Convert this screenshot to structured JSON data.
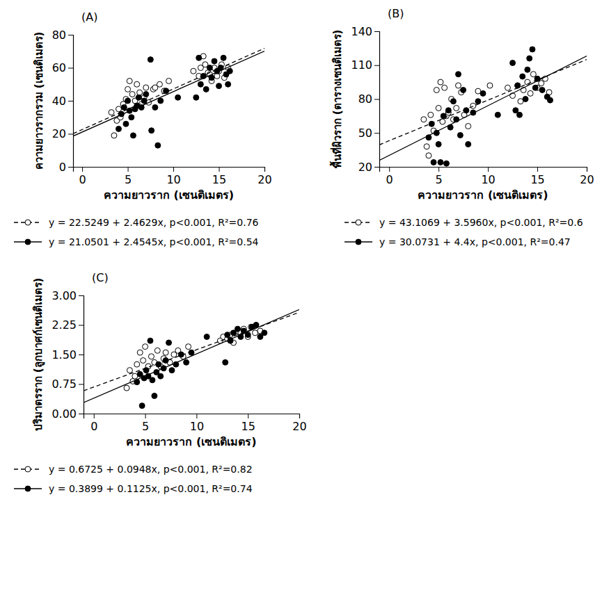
{
  "chart_data": [
    {
      "type": "scatter",
      "title": "(A)",
      "x_label": "ความยาวราก (เซนติเมตร)",
      "y_label": "ความยาวรากรวม (เซนติเมตร)",
      "xlim": [
        -1,
        20
      ],
      "ylim": [
        0,
        80
      ],
      "xticks": [
        0,
        5,
        10,
        15,
        20
      ],
      "yticks": [
        0,
        20,
        40,
        60,
        80
      ],
      "grid": false,
      "legend": "bottom",
      "series": [
        {
          "name": "y = 22.5249 + 2.4629x, p<0.001, R²=0.76",
          "color": "#000000",
          "marker": "open-circle",
          "line_style": "dashed",
          "x": [
            3.2,
            3.5,
            3.8,
            4.0,
            4.2,
            4.5,
            4.8,
            5.0,
            5.2,
            5.5,
            5.8,
            6.0,
            6.3,
            6.5,
            6.8,
            7.0,
            7.3,
            7.8,
            8.0,
            8.5,
            9.0,
            9.5,
            12.2,
            12.8,
            13.0,
            13.3,
            13.5,
            13.8,
            14.0,
            14.2,
            14.5,
            14.8,
            15.0,
            15.3,
            15.6,
            16.0
          ],
          "values": [
            33,
            19,
            28,
            35,
            30,
            38,
            41,
            47,
            52,
            44,
            40,
            50,
            45,
            38,
            42,
            48,
            39,
            47,
            48,
            50,
            46,
            52,
            58,
            55,
            60,
            67,
            62,
            57,
            56,
            52,
            60,
            55,
            58,
            62,
            54,
            60
          ],
          "fit": {
            "x": [
              -1,
              20
            ],
            "values": [
              20.1,
              71.8
            ]
          }
        },
        {
          "name": "y = 21.0501 + 2.4545x, p<0.001, R²=0.54",
          "color": "#000000",
          "marker": "filled-circle",
          "line_style": "solid",
          "x": [
            4.0,
            4.3,
            4.6,
            4.8,
            5.0,
            5.2,
            5.4,
            5.6,
            5.8,
            6.0,
            6.2,
            6.5,
            6.8,
            7.0,
            7.5,
            7.6,
            8.0,
            8.3,
            8.6,
            9.2,
            10.5,
            12.5,
            12.8,
            13.0,
            13.3,
            13.6,
            14.0,
            14.2,
            14.5,
            14.8,
            15.0,
            15.2,
            15.5,
            15.8,
            16.0,
            16.2
          ],
          "values": [
            23,
            32,
            36,
            26,
            40,
            34,
            30,
            19,
            35,
            37,
            42,
            36,
            40,
            44,
            65,
            22,
            36,
            13,
            40,
            46,
            42,
            42,
            66,
            50,
            55,
            47,
            60,
            54,
            64,
            58,
            49,
            60,
            66,
            56,
            50,
            58
          ],
          "fit": {
            "x": [
              -1,
              20
            ],
            "values": [
              18.6,
              70.1
            ]
          }
        }
      ]
    },
    {
      "type": "scatter",
      "title": "(B)",
      "x_label": "ความยาวราก (เซนติเมตร)",
      "y_label": "พื้นที่ผิวราก (ตารางเซนติเมตร)",
      "xlim": [
        -1,
        20
      ],
      "ylim": [
        20,
        140
      ],
      "xticks": [
        0,
        5,
        10,
        15,
        20
      ],
      "yticks": [
        20,
        50,
        80,
        110,
        140
      ],
      "grid": false,
      "legend": "bottom",
      "series": [
        {
          "name": "y = 43.1069 + 3.5960x, p<0.001, R²=0.6",
          "color": "#000000",
          "marker": "open-circle",
          "line_style": "dashed",
          "x": [
            3.5,
            3.8,
            4.0,
            4.2,
            4.5,
            4.8,
            5.0,
            5.2,
            5.4,
            5.6,
            5.8,
            6.0,
            6.3,
            6.5,
            6.8,
            7.0,
            7.3,
            7.6,
            8.0,
            8.5,
            9.0,
            10.2,
            12.0,
            12.5,
            13.0,
            13.3,
            13.6,
            14.0,
            14.3,
            14.6,
            15.0,
            15.4,
            15.8,
            16.2
          ],
          "values": [
            62,
            38,
            30,
            66,
            52,
            88,
            72,
            95,
            60,
            90,
            65,
            68,
            80,
            62,
            72,
            92,
            86,
            66,
            56,
            74,
            87,
            92,
            90,
            83,
            92,
            78,
            88,
            95,
            85,
            102,
            90,
            94,
            98,
            86
          ],
          "fit": {
            "x": [
              -1,
              20
            ],
            "values": [
              39.5,
              115.0
            ]
          }
        },
        {
          "name": "y = 30.0731 + 4.4x, p<0.001, R²=0.47",
          "color": "#000000",
          "marker": "filled-circle",
          "line_style": "solid",
          "x": [
            4.0,
            4.3,
            4.5,
            4.8,
            5.0,
            5.2,
            5.5,
            5.8,
            6.0,
            6.2,
            6.5,
            6.8,
            7.0,
            7.2,
            7.5,
            7.8,
            8.0,
            8.5,
            9.0,
            9.5,
            11.0,
            12.5,
            12.8,
            13.0,
            13.2,
            13.5,
            13.8,
            14.0,
            14.2,
            14.5,
            14.8,
            15.0,
            15.5,
            16.0,
            16.3
          ],
          "values": [
            46,
            58,
            24,
            50,
            40,
            24,
            65,
            23,
            70,
            55,
            78,
            62,
            102,
            48,
            88,
            70,
            40,
            68,
            78,
            85,
            66,
            112,
            70,
            92,
            66,
            100,
            80,
            106,
            116,
            124,
            90,
            98,
            88,
            82,
            79
          ],
          "fit": {
            "x": [
              -1,
              20
            ],
            "values": [
              25.7,
              118.1
            ]
          }
        }
      ]
    },
    {
      "type": "scatter",
      "title": "(C)",
      "x_label": "ความยาวราก (เซนติเมตร)",
      "y_label": "ปริมาตรราก (ลูกบาศก์เซนติเมตร)",
      "xlim": [
        -1,
        20
      ],
      "ylim": [
        0,
        3
      ],
      "xticks": [
        0,
        5,
        10,
        15,
        20
      ],
      "yticks": [
        {
          "value": 0,
          "label": "0.00"
        },
        {
          "value": 0.75,
          "label": "0.75"
        },
        {
          "value": 1.5,
          "label": "1.50"
        },
        {
          "value": 2.25,
          "label": "2.25"
        },
        {
          "value": 3,
          "label": "3.00"
        }
      ],
      "grid": false,
      "legend": "bottom",
      "series": [
        {
          "name": "y = 0.6725 + 0.0948x, p<0.001, R²=0.82",
          "color": "#000000",
          "marker": "open-circle",
          "line_style": "dashed",
          "x": [
            3.2,
            3.5,
            3.8,
            4.0,
            4.2,
            4.5,
            4.8,
            5.0,
            5.3,
            5.6,
            5.9,
            6.2,
            6.5,
            6.8,
            7.0,
            7.4,
            7.8,
            8.2,
            8.7,
            9.2,
            12.3,
            12.6,
            13.0,
            13.3,
            13.6,
            14.0,
            14.3,
            14.6,
            15.0,
            15.3,
            15.7,
            16.2
          ],
          "values": [
            0.65,
            1.1,
            0.82,
            0.95,
            1.25,
            1.55,
            1.35,
            1.7,
            1.2,
            1.45,
            1.3,
            1.6,
            1.2,
            1.4,
            1.55,
            1.3,
            1.5,
            1.6,
            1.45,
            1.7,
            1.85,
            1.95,
            1.9,
            2.0,
            1.8,
            2.1,
            2.05,
            2.15,
            1.95,
            2.2,
            2.05,
            2.1
          ],
          "fit": {
            "x": [
              -1,
              20
            ],
            "values": [
              0.58,
              2.57
            ]
          }
        },
        {
          "name": "y = 0.3899 + 0.1125x, p<0.001, R²=0.74",
          "color": "#000000",
          "marker": "filled-circle",
          "line_style": "solid",
          "x": [
            4.2,
            4.5,
            4.7,
            4.9,
            5.1,
            5.3,
            5.5,
            5.7,
            5.9,
            6.1,
            6.3,
            6.5,
            6.8,
            7.0,
            7.3,
            7.6,
            8.0,
            8.5,
            9.0,
            9.5,
            11.0,
            12.8,
            13.0,
            13.3,
            13.6,
            14.0,
            14.3,
            14.6,
            15.0,
            15.4,
            15.8,
            16.2,
            16.6
          ],
          "values": [
            0.8,
            1.0,
            0.2,
            0.9,
            1.1,
            0.95,
            1.85,
            0.85,
            0.45,
            1.05,
            1.25,
            0.95,
            1.15,
            1.35,
            1.8,
            1.1,
            1.25,
            1.5,
            1.3,
            1.55,
            1.95,
            1.3,
            2.0,
            1.85,
            2.05,
            2.15,
            1.95,
            2.1,
            2.0,
            2.2,
            2.25,
            1.95,
            2.05
          ],
          "fit": {
            "x": [
              -1,
              20
            ],
            "values": [
              0.28,
              2.64
            ]
          }
        }
      ]
    }
  ]
}
